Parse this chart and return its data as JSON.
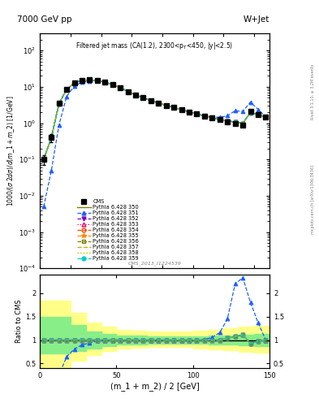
{
  "title_left": "7000 GeV pp",
  "title_right": "W+Jet",
  "plot_title": "Filtered jet mass (CA(1.2), 2300<p_{T}<450, |y|<2.5)",
  "ylabel_main": "1000/(σ 2dσ)/d(m_1 + m_2) [1/GeV]",
  "ylabel_ratio": "Ratio to CMS",
  "xlabel": "(m_1 + m_2) / 2 [GeV]",
  "watermark": "CMS_2013_I1224539",
  "right_label": "mcplots.cern.ch [arXiv:1306.3436]",
  "right_label2": "Rivet 3.1.10, ≥ 3.2M events",
  "x_data": [
    2.5,
    7.5,
    12.5,
    17.5,
    22.5,
    27.5,
    32.5,
    37.5,
    42.5,
    47.5,
    52.5,
    57.5,
    62.5,
    67.5,
    72.5,
    77.5,
    82.5,
    87.5,
    92.5,
    97.5,
    102.5,
    107.5,
    112.5,
    117.5,
    122.5,
    127.5,
    132.5,
    137.5,
    142.5,
    147.5
  ],
  "cms_y": [
    0.1,
    0.4,
    3.5,
    8.5,
    13.0,
    15.0,
    15.5,
    15.0,
    13.5,
    11.5,
    9.5,
    7.5,
    6.0,
    5.0,
    4.2,
    3.6,
    3.1,
    2.7,
    2.35,
    2.05,
    1.8,
    1.58,
    1.4,
    1.25,
    1.1,
    1.0,
    0.9,
    2.1,
    1.75,
    1.5
  ],
  "cms_yerr": [
    0.03,
    0.1,
    0.5,
    0.9,
    1.2,
    1.3,
    1.4,
    1.3,
    1.2,
    1.0,
    0.8,
    0.6,
    0.5,
    0.45,
    0.38,
    0.32,
    0.28,
    0.24,
    0.21,
    0.18,
    0.16,
    0.14,
    0.13,
    0.12,
    0.1,
    0.09,
    0.08,
    0.19,
    0.16,
    0.14
  ],
  "py350_y": [
    0.1,
    0.4,
    3.5,
    8.5,
    13.0,
    15.0,
    15.5,
    15.0,
    13.5,
    11.5,
    9.5,
    7.5,
    6.0,
    5.0,
    4.2,
    3.6,
    3.1,
    2.7,
    2.35,
    2.05,
    1.8,
    1.58,
    1.4,
    1.25,
    1.15,
    1.08,
    1.0,
    1.95,
    1.7,
    1.5
  ],
  "py351_y": [
    0.005,
    0.05,
    0.9,
    5.5,
    10.5,
    13.5,
    14.5,
    14.8,
    13.5,
    11.5,
    9.5,
    7.5,
    6.0,
    5.0,
    4.2,
    3.6,
    3.1,
    2.7,
    2.35,
    2.05,
    1.8,
    1.6,
    1.48,
    1.45,
    1.6,
    2.2,
    2.1,
    3.8,
    2.4,
    1.5
  ],
  "py352_y": [
    0.1,
    0.4,
    3.5,
    8.5,
    13.0,
    15.0,
    15.5,
    15.0,
    13.5,
    11.5,
    9.5,
    7.5,
    6.0,
    5.0,
    4.2,
    3.6,
    3.1,
    2.7,
    2.35,
    2.05,
    1.8,
    1.58,
    1.4,
    1.25,
    1.15,
    1.08,
    1.0,
    1.95,
    1.7,
    1.5
  ],
  "py353_y": [
    0.1,
    0.4,
    3.5,
    8.5,
    13.0,
    15.0,
    15.5,
    15.0,
    13.5,
    11.5,
    9.5,
    7.5,
    6.0,
    5.0,
    4.2,
    3.6,
    3.1,
    2.7,
    2.35,
    2.05,
    1.8,
    1.58,
    1.4,
    1.25,
    1.15,
    1.08,
    1.0,
    1.95,
    1.7,
    1.5
  ],
  "py354_y": [
    0.1,
    0.4,
    3.5,
    8.5,
    13.0,
    15.0,
    15.5,
    15.0,
    13.5,
    11.5,
    9.5,
    7.5,
    6.0,
    5.0,
    4.2,
    3.6,
    3.1,
    2.7,
    2.35,
    2.05,
    1.8,
    1.58,
    1.4,
    1.25,
    1.15,
    1.08,
    1.0,
    1.95,
    1.7,
    1.5
  ],
  "py355_y": [
    0.1,
    0.4,
    3.5,
    8.5,
    13.0,
    15.0,
    15.5,
    15.0,
    13.5,
    11.5,
    9.5,
    7.5,
    6.0,
    5.0,
    4.2,
    3.6,
    3.1,
    2.7,
    2.35,
    2.05,
    1.8,
    1.58,
    1.4,
    1.25,
    1.15,
    1.08,
    1.0,
    1.95,
    1.7,
    1.5
  ],
  "py356_y": [
    0.1,
    0.4,
    3.5,
    8.5,
    13.0,
    15.0,
    15.5,
    15.0,
    13.5,
    11.5,
    9.5,
    7.5,
    6.0,
    5.0,
    4.2,
    3.6,
    3.1,
    2.7,
    2.35,
    2.05,
    1.8,
    1.58,
    1.4,
    1.25,
    1.15,
    1.08,
    1.0,
    1.95,
    1.7,
    1.5
  ],
  "py357_y": [
    0.1,
    0.4,
    3.5,
    8.5,
    13.0,
    15.0,
    15.5,
    15.0,
    13.5,
    11.5,
    9.5,
    7.5,
    6.0,
    5.0,
    4.2,
    3.6,
    3.1,
    2.7,
    2.35,
    2.05,
    1.8,
    1.58,
    1.4,
    1.25,
    1.15,
    1.08,
    1.0,
    1.95,
    1.7,
    1.5
  ],
  "py358_y": [
    0.1,
    0.4,
    3.5,
    8.5,
    13.0,
    15.0,
    15.5,
    15.0,
    13.5,
    11.5,
    9.5,
    7.5,
    6.0,
    5.0,
    4.2,
    3.6,
    3.1,
    2.7,
    2.35,
    2.05,
    1.8,
    1.58,
    1.4,
    1.25,
    1.15,
    1.08,
    1.0,
    1.95,
    1.7,
    1.5
  ],
  "py359_y": [
    0.1,
    0.4,
    3.5,
    8.5,
    13.0,
    15.0,
    15.5,
    15.0,
    13.5,
    11.5,
    9.5,
    7.5,
    6.0,
    5.0,
    4.2,
    3.6,
    3.1,
    2.7,
    2.35,
    2.05,
    1.8,
    1.58,
    1.4,
    1.25,
    1.15,
    1.08,
    1.0,
    1.95,
    1.7,
    1.5
  ],
  "xlim": [
    0,
    150
  ],
  "ylim_main": [
    0.0001,
    300
  ],
  "ylim_ratio": [
    0.4,
    2.4
  ],
  "colors": [
    "#808000",
    "#1e5eff",
    "#7b00bb",
    "#ff0066",
    "#ff4400",
    "#ff8800",
    "#808000",
    "#ccaa00",
    "#aacc00",
    "#00cccc"
  ],
  "markers": [
    "",
    "^",
    "v",
    "^",
    "o",
    "*",
    "s",
    "",
    "",
    "o"
  ],
  "lstyles": [
    "-",
    "--",
    "--",
    ":",
    "--",
    "--",
    "--",
    "--",
    ":",
    "--"
  ],
  "labels": [
    "Pythia 6.428 350",
    "Pythia 6.428 351",
    "Pythia 6.428 352",
    "Pythia 6.428 353",
    "Pythia 6.428 354",
    "Pythia 6.428 355",
    "Pythia 6.428 356",
    "Pythia 6.428 357",
    "Pythia 6.428 358",
    "Pythia 6.428 359"
  ],
  "band_x": [
    0,
    5,
    10,
    20,
    30,
    40,
    50,
    60,
    70,
    80,
    90,
    100,
    110,
    120,
    130,
    140,
    150
  ],
  "band_gy_lo": [
    0.72,
    0.72,
    0.72,
    0.76,
    0.82,
    0.87,
    0.9,
    0.91,
    0.92,
    0.92,
    0.92,
    0.92,
    0.91,
    0.9,
    0.88,
    0.87,
    0.87
  ],
  "band_gy_hi": [
    1.5,
    1.5,
    1.5,
    1.32,
    1.18,
    1.13,
    1.1,
    1.09,
    1.08,
    1.08,
    1.08,
    1.08,
    1.09,
    1.1,
    1.12,
    1.13,
    1.13
  ],
  "band_yy_lo": [
    0.42,
    0.42,
    0.42,
    0.55,
    0.68,
    0.76,
    0.82,
    0.84,
    0.85,
    0.85,
    0.85,
    0.82,
    0.8,
    0.78,
    0.75,
    0.73,
    0.73
  ],
  "band_yy_hi": [
    1.85,
    1.85,
    1.85,
    1.58,
    1.38,
    1.28,
    1.22,
    1.2,
    1.18,
    1.18,
    1.18,
    1.2,
    1.22,
    1.25,
    1.28,
    1.3,
    1.3
  ]
}
